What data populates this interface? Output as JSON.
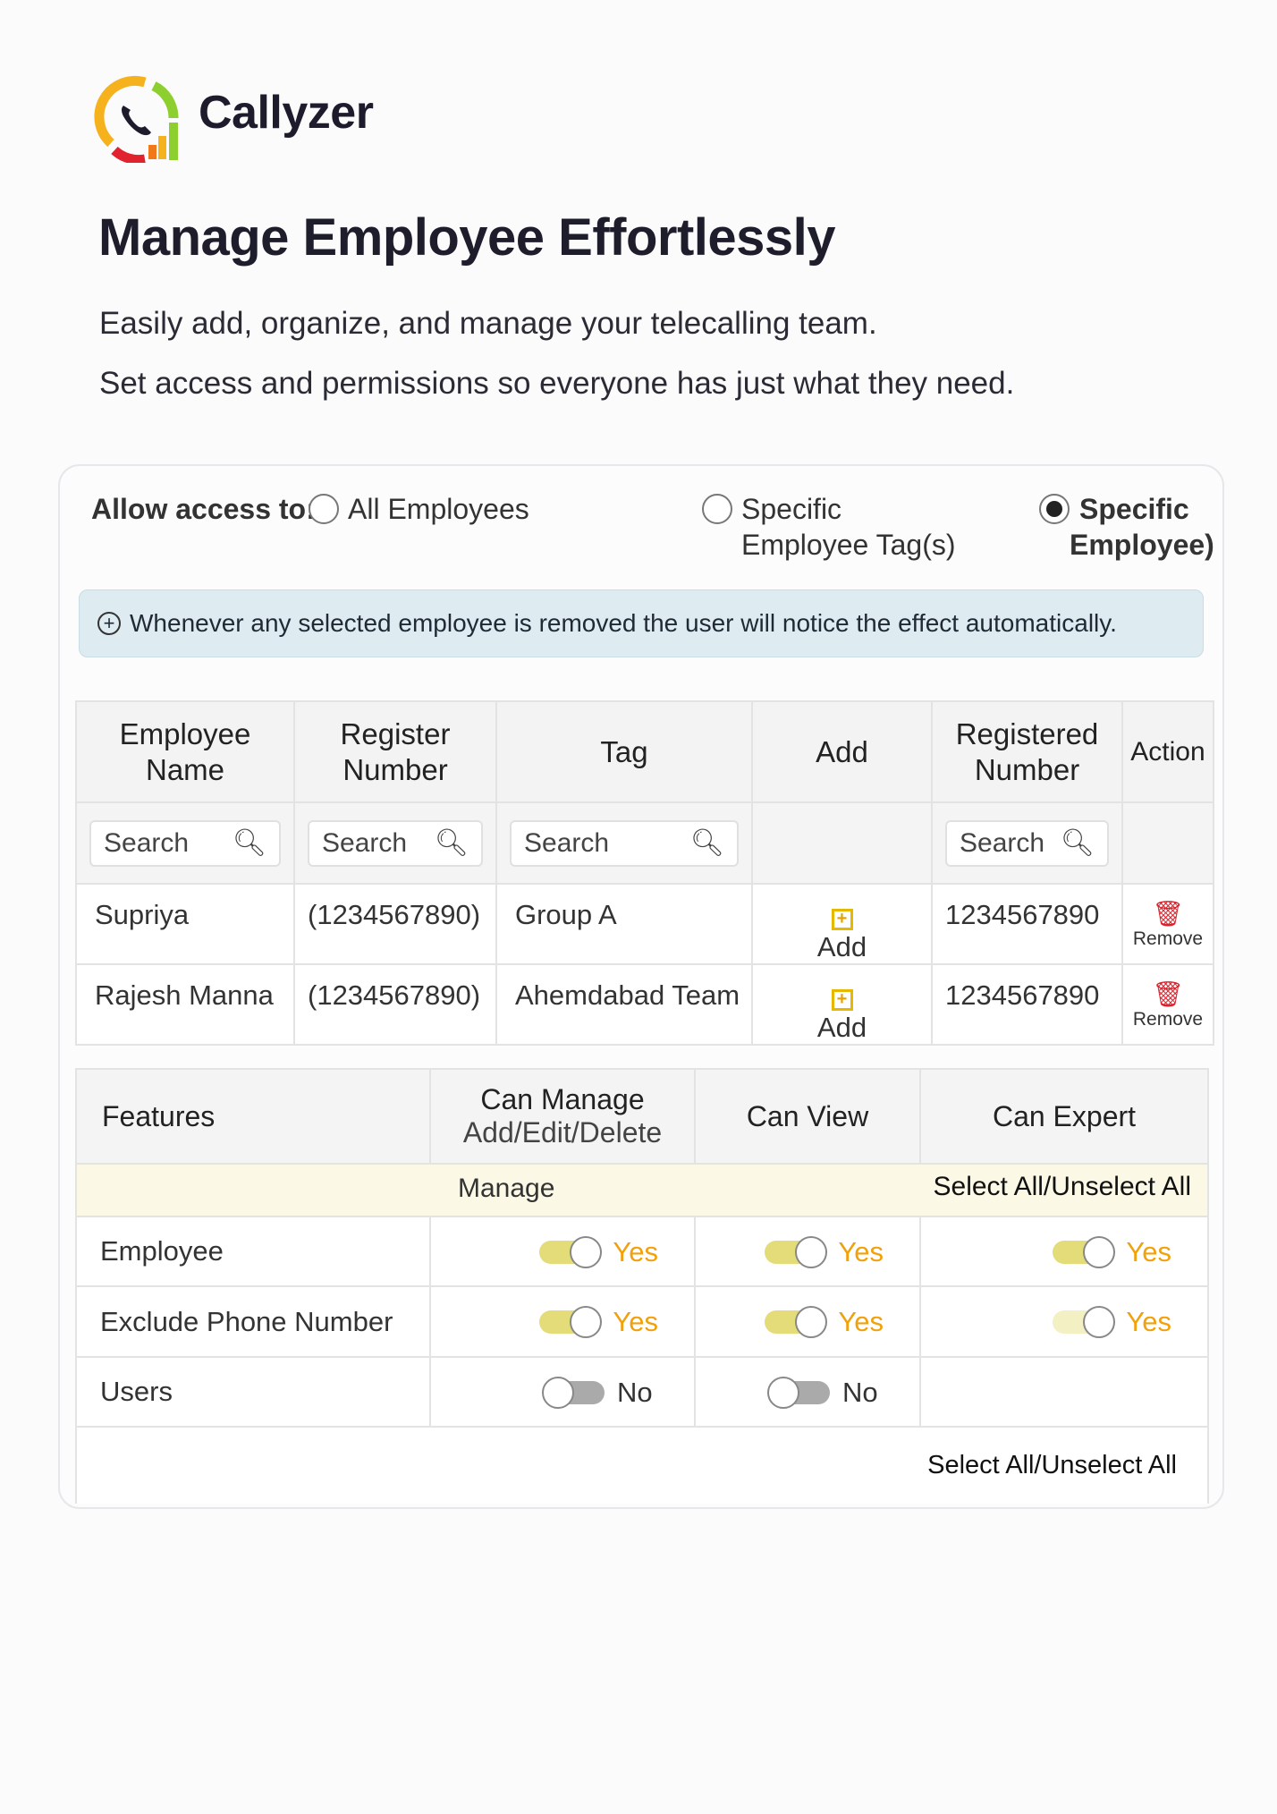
{
  "brand": {
    "name": "Callyzer",
    "colors": {
      "orange": "#f5b21c",
      "green": "#8ccf2e",
      "red": "#e0232f"
    }
  },
  "hero": {
    "title": "Manage Employee Effortlessly",
    "line1": "Easily add, organize, and manage your telecalling team.",
    "line2": "Set access and permissions so everyone has just what they need."
  },
  "access": {
    "label": "Allow access to:",
    "options": [
      {
        "line1": "All Employees",
        "line2": "",
        "selected": false
      },
      {
        "line1": "Specific",
        "line2": "Employee Tag(s)",
        "selected": false
      },
      {
        "line1": "Specific",
        "line2": "Employee)",
        "selected": true
      }
    ]
  },
  "banner": {
    "icon": "plus-circle-icon",
    "text": "Whenever any selected employee is removed the user will notice the effect automatically."
  },
  "employees": {
    "headers": [
      {
        "l1": "Employee",
        "l2": "Name"
      },
      {
        "l1": "Register",
        "l2": "Number"
      },
      {
        "l1": "Tag",
        "l2": ""
      },
      {
        "l1": "Add",
        "l2": ""
      },
      {
        "l1": "Registered",
        "l2": "Number"
      },
      {
        "l1": "Action",
        "l2": ""
      }
    ],
    "search_placeholder": "Search",
    "rows": [
      {
        "name": "Supriya",
        "register": "(1234567890)",
        "tag": "Group A",
        "add": "Add",
        "registered": "1234567890",
        "action": "Remove"
      },
      {
        "name": "Rajesh Manna",
        "register": "(1234567890)",
        "tag": "Ahemdabad Team",
        "add": "Add",
        "registered": "1234567890",
        "action": "Remove"
      }
    ]
  },
  "features": {
    "headers": {
      "features": "Features",
      "manage": "Can Manage",
      "manage_sub": "Add/Edit/Delete",
      "view": "Can View",
      "expert": "Can Expert"
    },
    "group": {
      "label": "Manage",
      "select_all": "Select All/Unselect All"
    },
    "rows": [
      {
        "name": "Employee",
        "manage": {
          "on": true,
          "label": "Yes"
        },
        "view": {
          "on": true,
          "label": "Yes"
        },
        "expert": {
          "on": true,
          "label": "Yes"
        }
      },
      {
        "name": "Exclude Phone Number",
        "manage": {
          "on": true,
          "label": "Yes"
        },
        "view": {
          "on": true,
          "label": "Yes"
        },
        "expert": {
          "on": true,
          "faded": true,
          "label": "Yes"
        }
      },
      {
        "name": "Users",
        "manage": {
          "on": false,
          "label": "No"
        },
        "view": {
          "on": false,
          "label": "No"
        },
        "expert": null
      }
    ],
    "footer_select_all": "Select All/Unselect All"
  }
}
